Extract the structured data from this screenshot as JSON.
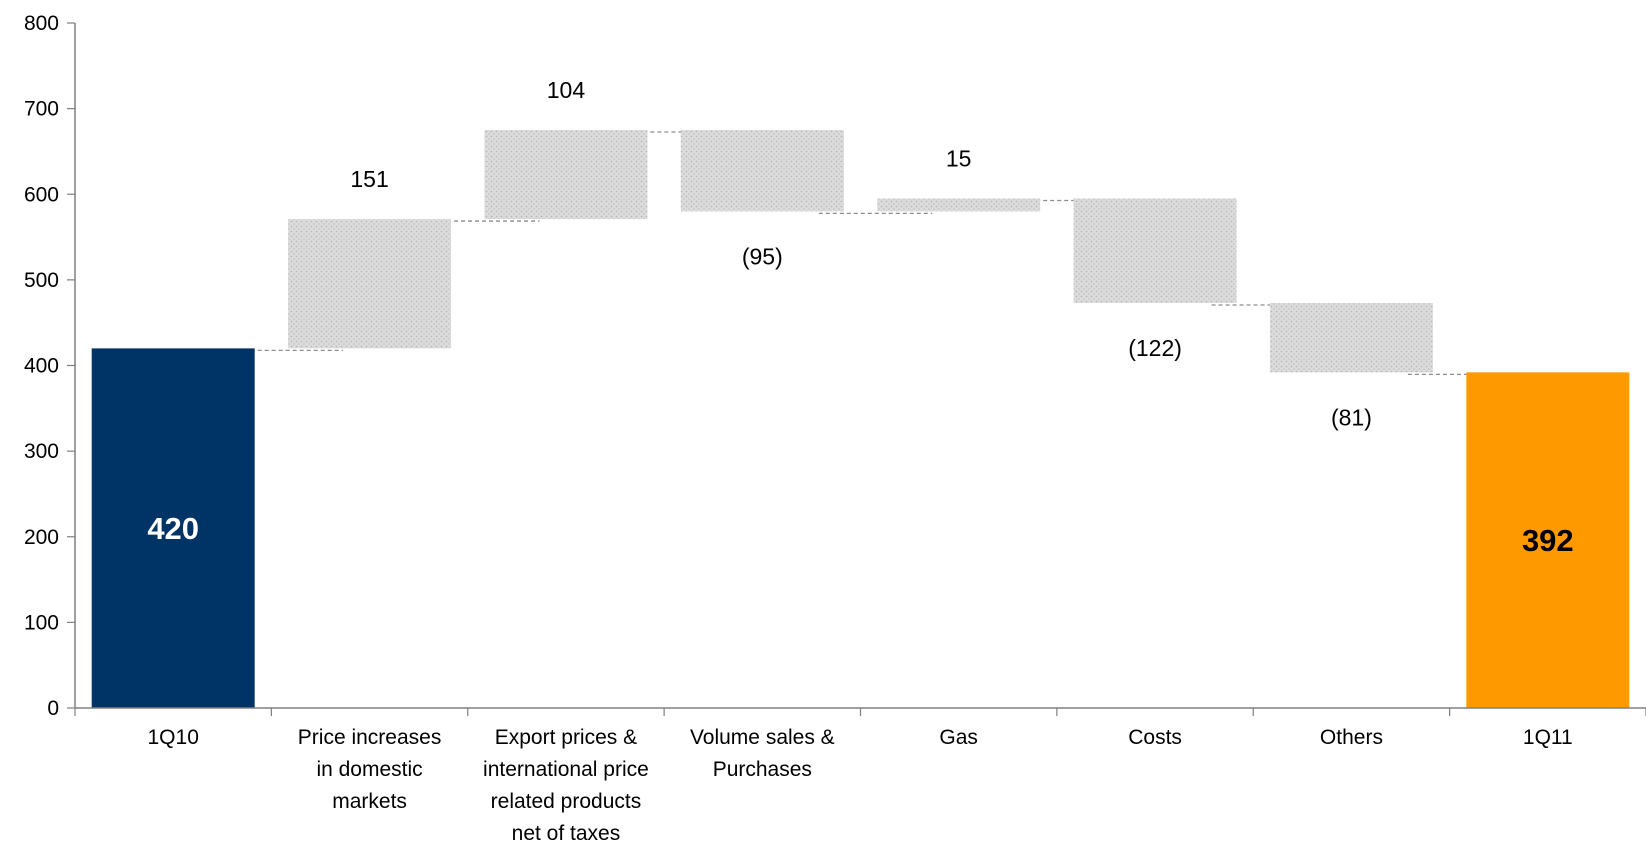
{
  "chart_data": {
    "type": "bar",
    "subtype": "waterfall",
    "title": "",
    "xlabel": "",
    "ylabel": "",
    "ylim": [
      0,
      800
    ],
    "yticks": [
      0,
      100,
      200,
      300,
      400,
      500,
      600,
      700,
      800
    ],
    "grid": false,
    "legend": "none",
    "categories": [
      [
        "1Q10"
      ],
      [
        "Price increases",
        "in domestic",
        "markets"
      ],
      [
        "Export prices &",
        "international price",
        "related products",
        "net of taxes"
      ],
      [
        "Volume sales &",
        "Purchases"
      ],
      [
        "Gas"
      ],
      [
        "Costs"
      ],
      [
        "Others"
      ],
      [
        "1Q11"
      ]
    ],
    "bars": [
      {
        "kind": "total",
        "start": 0,
        "end": 420,
        "label": "420",
        "color": "#003366",
        "label_color": "#ffffff"
      },
      {
        "kind": "delta",
        "start": 420,
        "end": 571,
        "label": "151"
      },
      {
        "kind": "delta",
        "start": 571,
        "end": 675,
        "label": "104"
      },
      {
        "kind": "delta",
        "start": 675,
        "end": 580,
        "label": "(95)"
      },
      {
        "kind": "delta",
        "start": 580,
        "end": 595,
        "label": "15"
      },
      {
        "kind": "delta",
        "start": 595,
        "end": 473,
        "label": "(122)"
      },
      {
        "kind": "delta",
        "start": 473,
        "end": 392,
        "label": "(81)"
      },
      {
        "kind": "total",
        "start": 0,
        "end": 392,
        "label": "392",
        "color": "#ff9900",
        "label_color": "#000000"
      }
    ],
    "colors": {
      "delta_fill": "#d4d4d4",
      "axis": "#808080",
      "connector": "#8c8c8c"
    }
  }
}
